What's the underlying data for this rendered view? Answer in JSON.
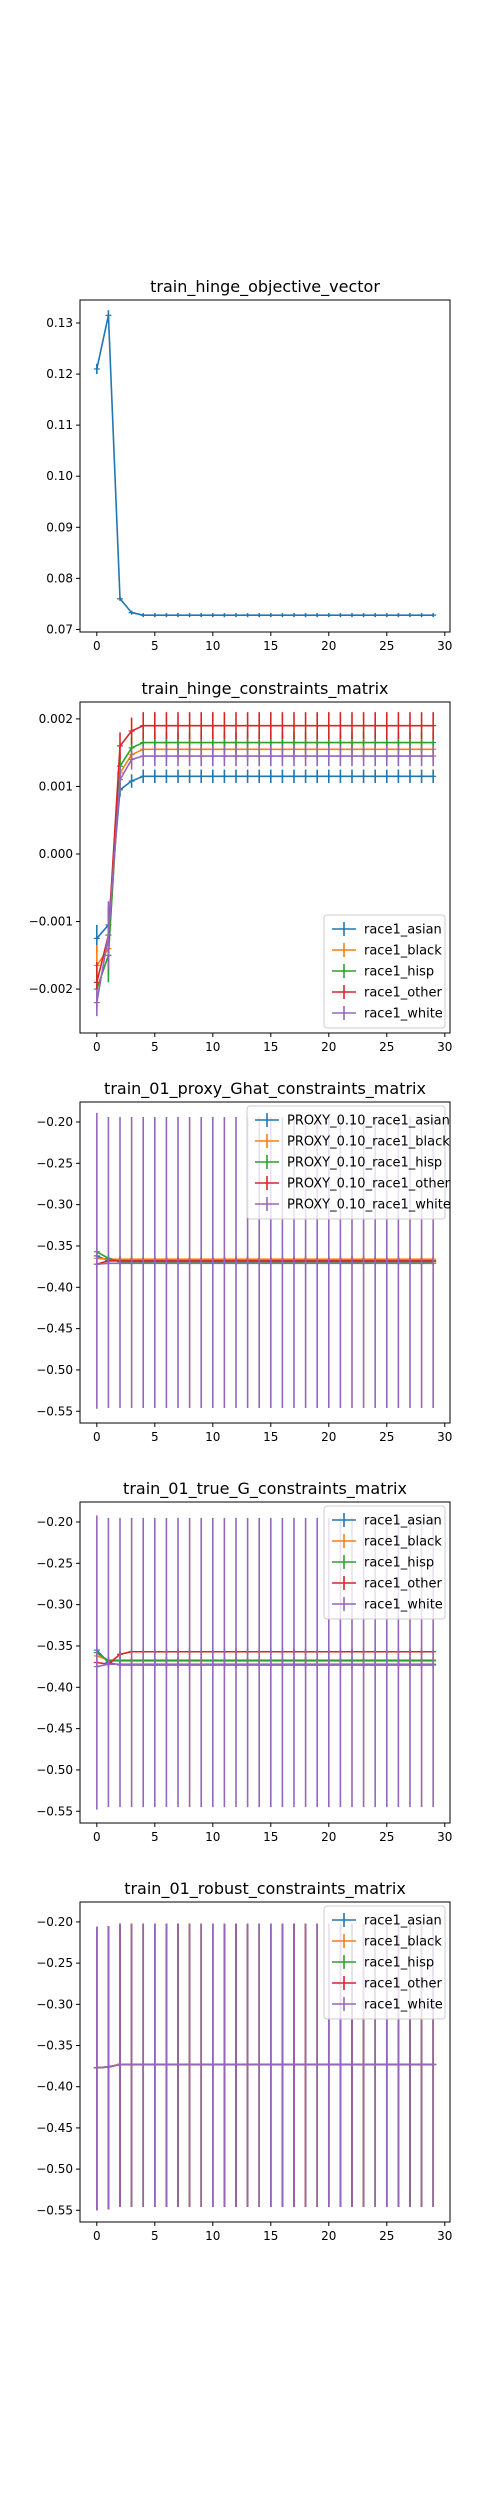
{
  "colors": {
    "C0": "#1f77b4",
    "C1": "#ff7f0e",
    "C2": "#2ca02c",
    "C3": "#d62728",
    "C4": "#9467bd"
  },
  "chart_data": [
    {
      "type": "line",
      "title": "train_hinge_objective_vector",
      "xlim": [
        -1.45,
        30.45
      ],
      "ylim": [
        0.0695,
        0.1345
      ],
      "xticks": [
        0,
        5,
        10,
        15,
        20,
        25,
        30
      ],
      "xtick_labels": [
        "0",
        "5",
        "10",
        "15",
        "20",
        "25",
        "30"
      ],
      "yticks": [
        0.07,
        0.08,
        0.09,
        0.1,
        0.11,
        0.12,
        0.13
      ],
      "ytick_labels": [
        "0.07",
        "0.08",
        "0.09",
        "0.10",
        "0.11",
        "0.12",
        "0.13"
      ],
      "legend": null,
      "x": [
        0,
        1,
        2,
        3,
        4,
        5,
        6,
        7,
        8,
        9,
        10,
        11,
        12,
        13,
        14,
        15,
        16,
        17,
        18,
        19,
        20,
        21,
        22,
        23,
        24,
        25,
        26,
        27,
        28,
        29
      ],
      "series": [
        {
          "color": "C0",
          "values": [
            0.121,
            0.1315,
            0.076,
            0.0733,
            0.0728,
            0.0728,
            0.0728,
            0.0728,
            0.0728,
            0.0728,
            0.0728,
            0.0728,
            0.0728,
            0.0728,
            0.0728,
            0.0728,
            0.0728,
            0.0728,
            0.0728,
            0.0728,
            0.0728,
            0.0728,
            0.0728,
            0.0728,
            0.0728,
            0.0728,
            0.0728,
            0.0728,
            0.0728,
            0.0728
          ],
          "err_const": 0.0004,
          "err_first": [
            0.001,
            0.001,
            0.0004
          ]
        }
      ]
    },
    {
      "type": "line",
      "title": "train_hinge_constraints_matrix",
      "xlim": [
        -1.45,
        30.45
      ],
      "ylim": [
        -0.00265,
        0.00225
      ],
      "xticks": [
        0,
        5,
        10,
        15,
        20,
        25,
        30
      ],
      "xtick_labels": [
        "0",
        "5",
        "10",
        "15",
        "20",
        "25",
        "30"
      ],
      "yticks": [
        -0.002,
        -0.001,
        0.0,
        0.001,
        0.002
      ],
      "ytick_labels": [
        "−0.002",
        "−0.001",
        "0.000",
        "0.001",
        "0.002"
      ],
      "legend": "lower right",
      "x": [
        0,
        1,
        2,
        3,
        4,
        5,
        6,
        7,
        8,
        9,
        10,
        11,
        12,
        13,
        14,
        15,
        16,
        17,
        18,
        19,
        20,
        21,
        22,
        23,
        24,
        25,
        26,
        27,
        28,
        29
      ],
      "series": [
        {
          "name": "race1_asian",
          "color": "C0",
          "start": [
            -0.00125,
            -0.00105,
            0.00095,
            0.00108
          ],
          "steady": 0.00115,
          "err": 0.0001,
          "err_first": [
            0.0002,
            0.0002,
            0.0001,
            0.0001
          ]
        },
        {
          "name": "race1_black",
          "color": "C1",
          "start": [
            -0.00165,
            -0.0014,
            0.0012,
            0.00147
          ],
          "steady": 0.00155,
          "err": 0.00015,
          "err_first": [
            0.0003,
            0.0004,
            0.0002,
            0.00015
          ]
        },
        {
          "name": "race1_hisp",
          "color": "C2",
          "start": [
            -0.002,
            -0.0015,
            0.0013,
            0.00157
          ],
          "steady": 0.00165,
          "err": 0.00015,
          "err_first": [
            0.0003,
            0.0004,
            0.0002,
            0.00015
          ]
        },
        {
          "name": "race1_other",
          "color": "C3",
          "start": [
            -0.0019,
            -0.0012,
            0.0016,
            0.00182
          ],
          "steady": 0.0019,
          "err": 0.0002,
          "err_first": [
            0.0003,
            0.0004,
            0.0002,
            0.0002
          ]
        },
        {
          "name": "race1_white",
          "color": "C4",
          "start": [
            -0.0022,
            -0.0012,
            0.0011,
            0.0014
          ],
          "steady": 0.00145,
          "err": 0.00015,
          "err_first": [
            0.0002,
            0.0005,
            0.0002,
            0.00015
          ]
        }
      ]
    },
    {
      "type": "line",
      "title": "train_01_proxy_Ghat_constraints_matrix",
      "xlim": [
        -1.45,
        30.45
      ],
      "ylim": [
        -0.5642,
        -0.1758
      ],
      "xticks": [
        0,
        5,
        10,
        15,
        20,
        25,
        30
      ],
      "xtick_labels": [
        "0",
        "5",
        "10",
        "15",
        "20",
        "25",
        "30"
      ],
      "yticks": [
        -0.55,
        -0.5,
        -0.45,
        -0.4,
        -0.35,
        -0.3,
        -0.25,
        -0.2
      ],
      "ytick_labels": [
        "−0.55",
        "−0.50",
        "−0.45",
        "−0.40",
        "−0.35",
        "−0.30",
        "−0.25",
        "−0.20"
      ],
      "legend": "upper right",
      "x": [
        0,
        1,
        2,
        3,
        4,
        5,
        6,
        7,
        8,
        9,
        10,
        11,
        12,
        13,
        14,
        15,
        16,
        17,
        18,
        19,
        20,
        21,
        22,
        23,
        24,
        25,
        26,
        27,
        28,
        29
      ],
      "series": [
        {
          "name": "PROXY_0.10_race1_asian",
          "color": "C0",
          "start": [
            -0.362,
            -0.368
          ],
          "steady": -0.368,
          "err": 0.004
        },
        {
          "name": "PROXY_0.10_race1_black",
          "color": "C1",
          "start": [
            -0.365,
            -0.366
          ],
          "steady": -0.366,
          "err": 0.004
        },
        {
          "name": "PROXY_0.10_race1_hisp",
          "color": "C2",
          "start": [
            -0.357,
            -0.365
          ],
          "steady": -0.369,
          "err": 0.004
        },
        {
          "name": "PROXY_0.10_race1_other",
          "color": "C3",
          "start": [
            -0.372,
            -0.368
          ],
          "steady": -0.368,
          "err": 0.004
        },
        {
          "name": "PROXY_0.10_race1_white",
          "color": "C4",
          "start": [
            -0.372,
            -0.371
          ],
          "steady": -0.371,
          "err_lo": 0.175,
          "err_hi": 0.177,
          "err_hi_first": 0.183
        }
      ]
    },
    {
      "type": "line",
      "title": "train_01_true_G_constraints_matrix",
      "xlim": [
        -1.45,
        30.45
      ],
      "ylim": [
        -0.5642,
        -0.1758
      ],
      "xticks": [
        0,
        5,
        10,
        15,
        20,
        25,
        30
      ],
      "xtick_labels": [
        "0",
        "5",
        "10",
        "15",
        "20",
        "25",
        "30"
      ],
      "yticks": [
        -0.55,
        -0.5,
        -0.45,
        -0.4,
        -0.35,
        -0.3,
        -0.25,
        -0.2
      ],
      "ytick_labels": [
        "−0.55",
        "−0.50",
        "−0.45",
        "−0.40",
        "−0.35",
        "−0.30",
        "−0.25",
        "−0.20"
      ],
      "legend": "upper right",
      "x": [
        0,
        1,
        2,
        3,
        4,
        5,
        6,
        7,
        8,
        9,
        10,
        11,
        12,
        13,
        14,
        15,
        16,
        17,
        18,
        19,
        20,
        21,
        22,
        23,
        24,
        25,
        26,
        27,
        28,
        29
      ],
      "series": [
        {
          "name": "race1_asian",
          "color": "C0",
          "start": [
            -0.355,
            -0.37
          ],
          "steady": -0.373,
          "err": 0.004
        },
        {
          "name": "race1_black",
          "color": "C1",
          "start": [
            -0.362,
            -0.367
          ],
          "steady": -0.367,
          "err": 0.004
        },
        {
          "name": "race1_hisp",
          "color": "C2",
          "start": [
            -0.358,
            -0.368
          ],
          "steady": -0.368,
          "err": 0.004
        },
        {
          "name": "race1_other",
          "color": "C3",
          "start": [
            -0.37,
            -0.372,
            -0.36
          ],
          "steady": -0.357,
          "err": 0.004
        },
        {
          "name": "race1_white",
          "color": "C4",
          "start": [
            -0.375,
            -0.372
          ],
          "steady": -0.372,
          "err_lo": 0.173,
          "err_hi": 0.177,
          "err_hi_first": 0.183
        }
      ]
    },
    {
      "type": "line",
      "title": "train_01_robust_constraints_matrix",
      "xlim": [
        -1.45,
        30.45
      ],
      "ylim": [
        -0.5642,
        -0.1758
      ],
      "xticks": [
        0,
        5,
        10,
        15,
        20,
        25,
        30
      ],
      "xtick_labels": [
        "0",
        "5",
        "10",
        "15",
        "20",
        "25",
        "30"
      ],
      "yticks": [
        -0.55,
        -0.5,
        -0.45,
        -0.4,
        -0.35,
        -0.3,
        -0.25,
        -0.2
      ],
      "ytick_labels": [
        "−0.55",
        "−0.50",
        "−0.45",
        "−0.40",
        "−0.35",
        "−0.30",
        "−0.25",
        "−0.20"
      ],
      "legend": "upper right",
      "x": [
        0,
        1,
        2,
        3,
        4,
        5,
        6,
        7,
        8,
        9,
        10,
        11,
        12,
        13,
        14,
        15,
        16,
        17,
        18,
        19,
        20,
        21,
        22,
        23,
        24,
        25,
        26,
        27,
        28,
        29
      ],
      "series": [
        {
          "name": "race1_asian",
          "color": "C0",
          "start": [
            -0.377,
            -0.376
          ],
          "steady": -0.373,
          "err_lo": 0.173,
          "err_hi": 0.171
        },
        {
          "name": "race1_black",
          "color": "C1",
          "start": [
            -0.377,
            -0.376
          ],
          "steady": -0.373,
          "err_lo": 0.173,
          "err_hi": 0.171
        },
        {
          "name": "race1_hisp",
          "color": "C2",
          "start": [
            -0.377,
            -0.376
          ],
          "steady": -0.373,
          "err_lo": 0.173,
          "err_hi": 0.171
        },
        {
          "name": "race1_other",
          "color": "C3",
          "start": [
            -0.377,
            -0.376
          ],
          "steady": -0.373,
          "err_lo": 0.173,
          "err_hi": 0.171
        },
        {
          "name": "race1_white",
          "color": "C4",
          "start": [
            -0.377,
            -0.376
          ],
          "steady": -0.373,
          "err_lo": 0.173,
          "err_hi": 0.171
        }
      ]
    }
  ]
}
